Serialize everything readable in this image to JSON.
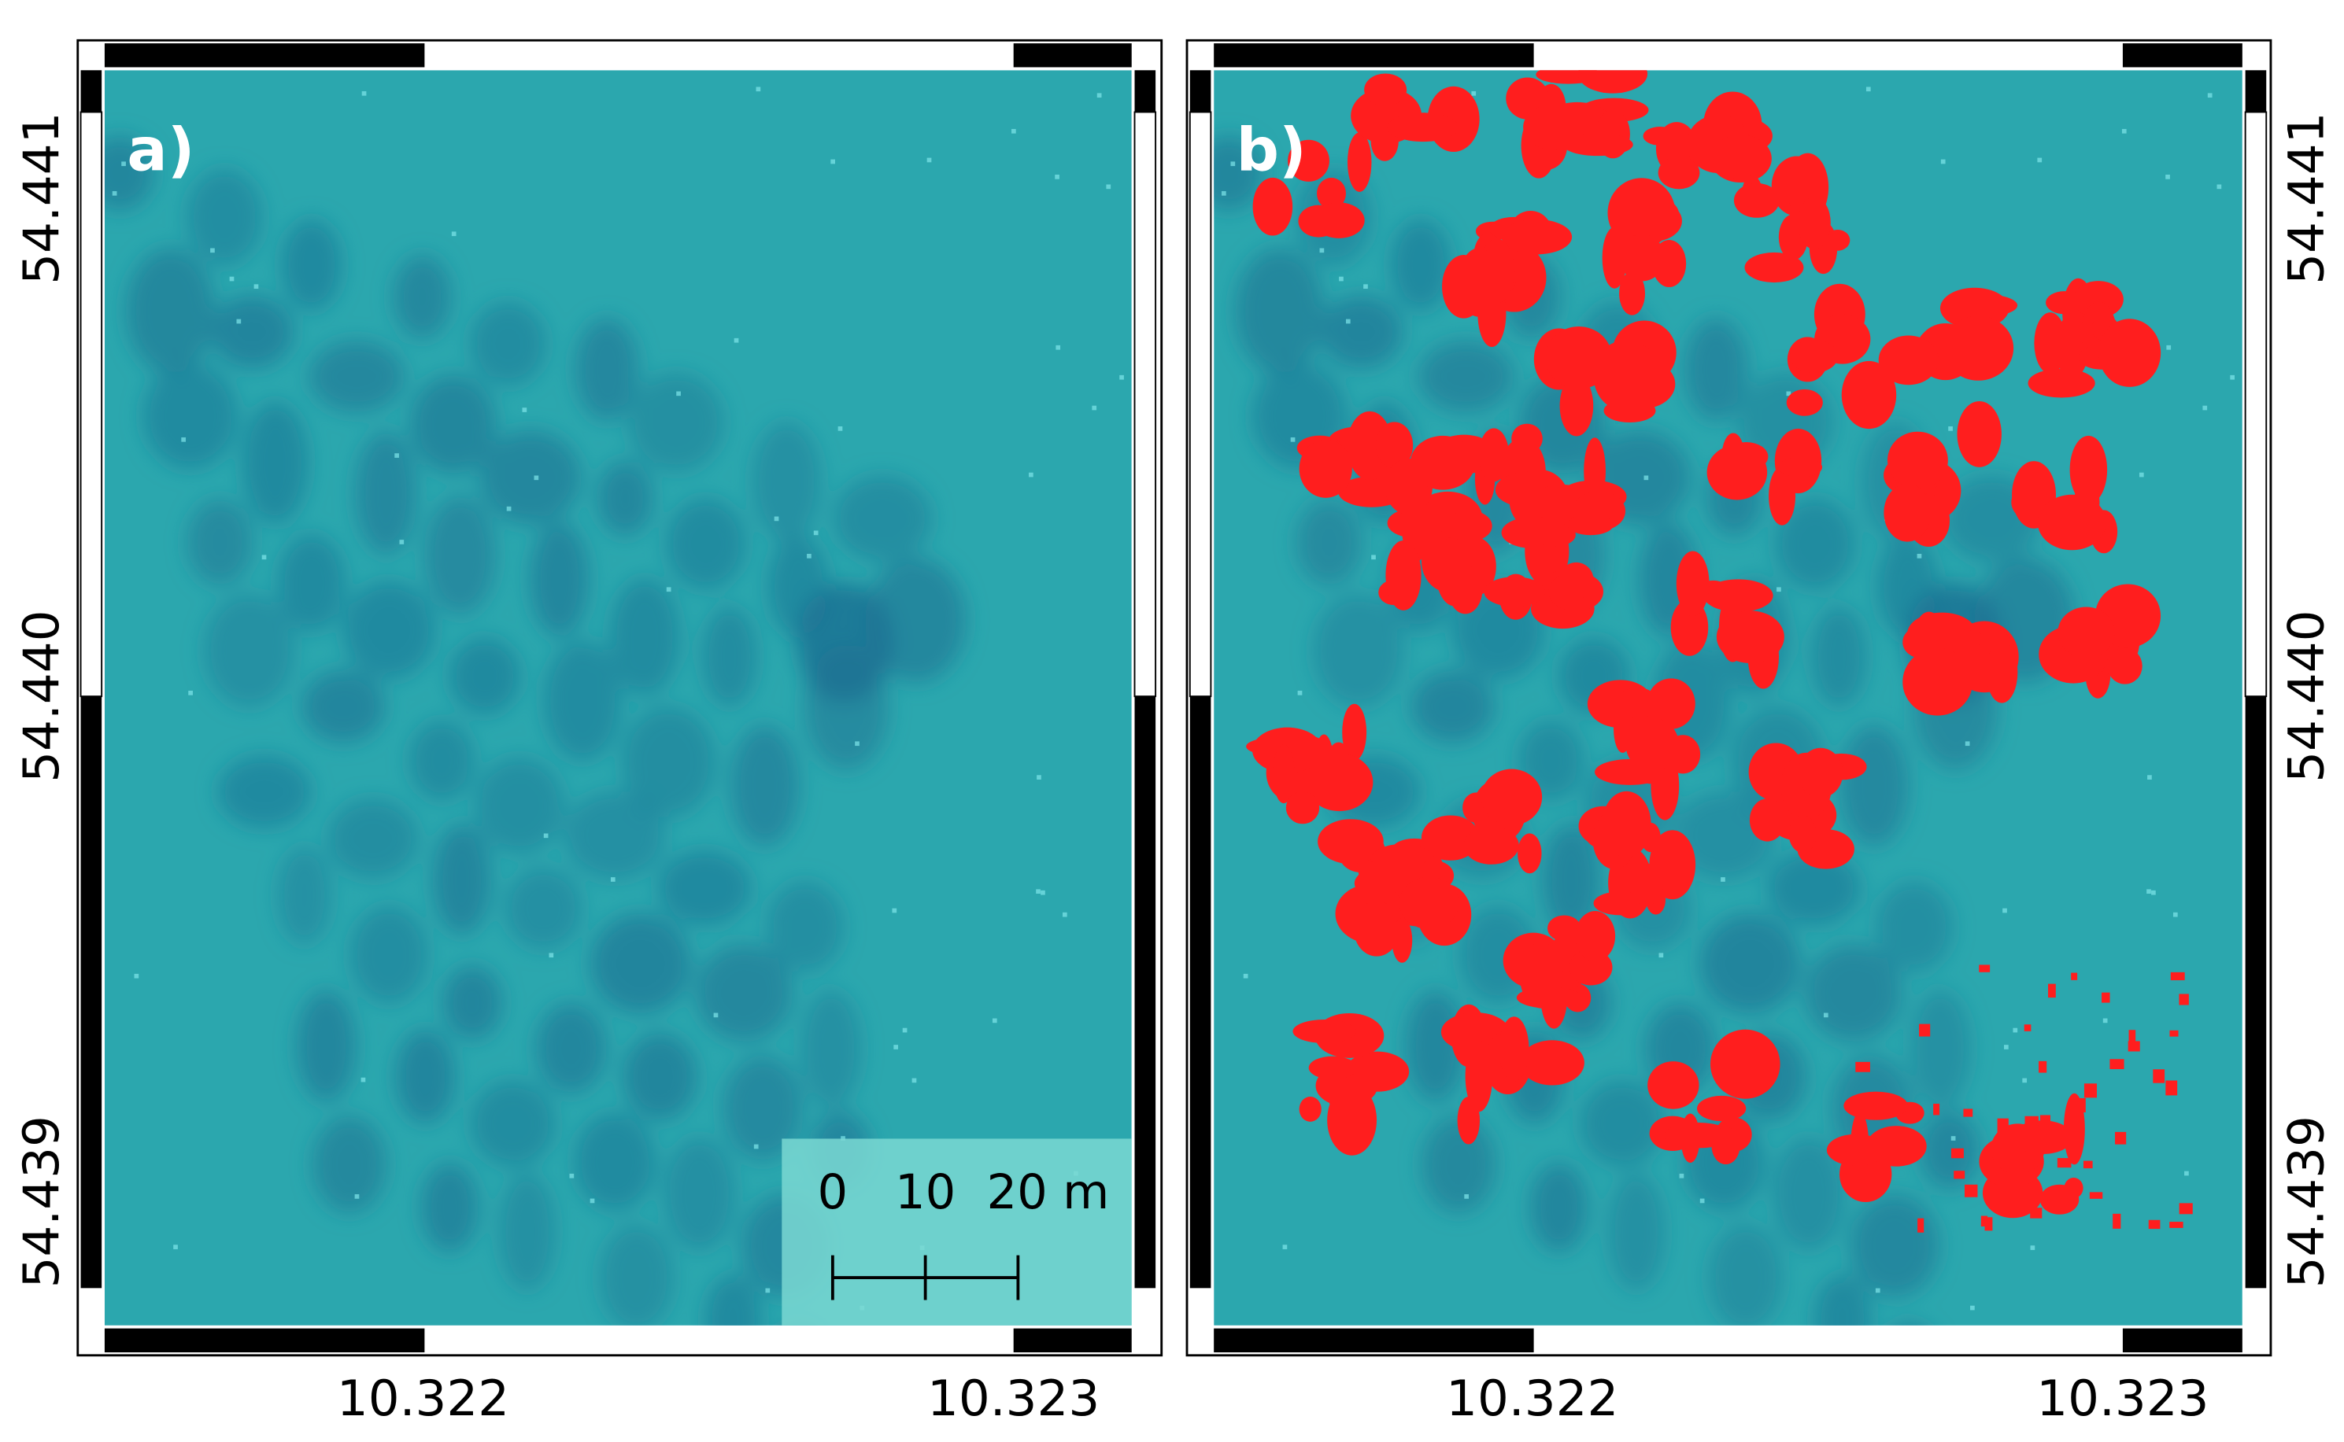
{
  "panels": [
    {
      "label": "a)",
      "x_ticks": [
        "10.322",
        "10.323"
      ],
      "y_ticks": [
        "54.441",
        "54.440",
        "54.439"
      ]
    },
    {
      "label": "b)",
      "x_ticks": [
        "10.322",
        "10.323"
      ],
      "y_ticks": [
        "54.441",
        "54.440",
        "54.439"
      ]
    }
  ],
  "scale_bar": {
    "labels": [
      "0",
      "10",
      "20 m"
    ]
  }
}
